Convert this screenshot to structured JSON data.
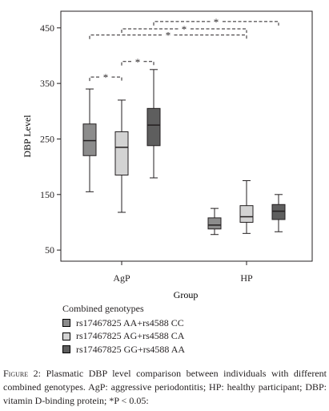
{
  "chart_data": {
    "type": "box",
    "xlabel": "Group",
    "ylabel": "DBP Level",
    "ylim": [
      30,
      480
    ],
    "yticks": [
      50,
      150,
      250,
      350,
      450
    ],
    "categories": [
      "AgP",
      "HP"
    ],
    "series": [
      {
        "name": "rs17467825 AA+rs4588 CC",
        "color": "#8c8c8c",
        "boxes": [
          {
            "category": "AgP",
            "min": 155,
            "q1": 220,
            "median": 247,
            "q3": 277,
            "max": 340
          },
          {
            "category": "HP",
            "min": 78,
            "q1": 88,
            "median": 95,
            "q3": 108,
            "max": 125
          }
        ]
      },
      {
        "name": "rs17467825 AG+rs4588 CA",
        "color": "#d3d3d3",
        "boxes": [
          {
            "category": "AgP",
            "min": 118,
            "q1": 185,
            "median": 235,
            "q3": 263,
            "max": 320
          },
          {
            "category": "HP",
            "min": 80,
            "q1": 100,
            "median": 110,
            "q3": 130,
            "max": 175
          }
        ]
      },
      {
        "name": "rs17467825 GG+rs4588 AA",
        "color": "#5e5e5e",
        "boxes": [
          {
            "category": "AgP",
            "min": 180,
            "q1": 238,
            "median": 275,
            "q3": 305,
            "max": 375
          },
          {
            "category": "HP",
            "min": 83,
            "q1": 105,
            "median": 120,
            "q3": 132,
            "max": 150
          }
        ]
      }
    ],
    "significance": [
      {
        "from": "AgP:rs17467825 AA+rs4588 CC",
        "to": "AgP:rs17467825 AG+rs4588 CA",
        "label": "*"
      },
      {
        "from": "AgP:rs17467825 AG+rs4588 CA",
        "to": "AgP:rs17467825 GG+rs4588 AA",
        "label": "*"
      },
      {
        "from": "AgP:rs17467825 AA+rs4588 CC",
        "to": "HP:rs17467825 AG+rs4588 CA",
        "label": "*"
      },
      {
        "from": "AgP:rs17467825 AG+rs4588 CA",
        "to": "HP:rs17467825 AG+rs4588 CA",
        "label": "*"
      },
      {
        "from": "AgP:rs17467825 GG+rs4588 AA",
        "to": "HP:rs17467825 GG+rs4588 AA",
        "label": "*"
      }
    ]
  },
  "legend": {
    "title": "Combined genotypes",
    "items": [
      {
        "label": "rs17467825 AA+rs4588 CC",
        "color": "#8c8c8c"
      },
      {
        "label": "rs17467825 AG+rs4588 CA",
        "color": "#d3d3d3"
      },
      {
        "label": "rs17467825 GG+rs4588 AA",
        "color": "#5e5e5e"
      }
    ]
  },
  "caption": {
    "label": "Figure 2:",
    "text": "Plasmatic DBP level comparison between individuals with different combined genotypes. AgP: aggressive periodontitis; HP: healthy participant; DBP: vitamin D-binding protein; *P < 0.05:"
  }
}
